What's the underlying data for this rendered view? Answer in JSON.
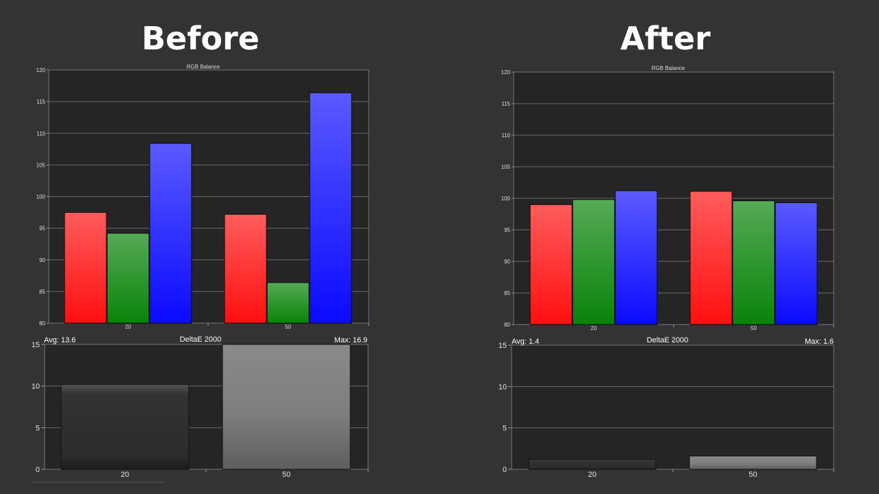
{
  "panels": [
    {
      "heading": "Before",
      "rgb_title": "RGB Balance",
      "delta_title": "DeltaE 2000",
      "avg_label": "Avg: 13.6",
      "max_label": "Max: 16.9"
    },
    {
      "heading": "After",
      "rgb_title": "RGB Balance",
      "delta_title": "DeltaE 2000",
      "avg_label": "Avg: 1.4",
      "max_label": "Max: 1.6"
    }
  ],
  "colors": {
    "red": "#ff3333",
    "green": "#1a9a1a",
    "blue": "#3333ff",
    "gray": "#777777"
  },
  "chart_data": [
    {
      "type": "bar",
      "title": "RGB Balance",
      "categories": [
        "20",
        "50"
      ],
      "series": [
        {
          "color": "red",
          "values": [
            97.5,
            97.2
          ]
        },
        {
          "color": "green",
          "values": [
            94.2,
            86.4
          ]
        },
        {
          "color": "blue",
          "values": [
            108.4,
            116.4
          ]
        }
      ],
      "ylim": [
        80,
        120
      ],
      "yticks": [
        80,
        85,
        90,
        95,
        100,
        105,
        110,
        115,
        120
      ],
      "grid": true
    },
    {
      "type": "bar",
      "title": "DeltaE 2000",
      "categories": [
        "20",
        "50"
      ],
      "values": [
        10.2,
        16.9
      ],
      "ylim": [
        0,
        15
      ],
      "yticks": [
        0,
        5,
        10,
        15
      ],
      "grid": true
    },
    {
      "type": "bar",
      "title": "RGB Balance",
      "categories": [
        "20",
        "50"
      ],
      "series": [
        {
          "color": "red",
          "values": [
            99.0,
            101.1
          ]
        },
        {
          "color": "green",
          "values": [
            99.8,
            99.6
          ]
        },
        {
          "color": "blue",
          "values": [
            101.2,
            99.3
          ]
        }
      ],
      "ylim": [
        80,
        120
      ],
      "yticks": [
        80,
        85,
        90,
        95,
        100,
        105,
        110,
        115,
        120
      ],
      "grid": true
    },
    {
      "type": "bar",
      "title": "DeltaE 2000",
      "categories": [
        "20",
        "50"
      ],
      "values": [
        1.2,
        1.6
      ],
      "ylim": [
        0,
        15
      ],
      "yticks": [
        0,
        5,
        10,
        15
      ],
      "grid": true
    }
  ]
}
